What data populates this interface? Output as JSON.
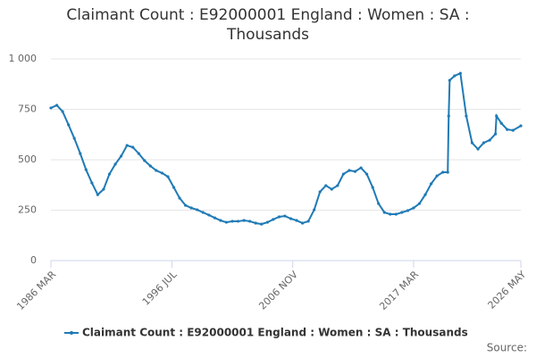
{
  "chart_data": {
    "type": "line",
    "title": "Claimant Count : E92000001 England : Women : SA : Thousands",
    "source": "Source:",
    "x": [
      "1986 MAR",
      "1986 SEP",
      "1987 MAR",
      "1987 SEP",
      "1988 MAR",
      "1988 SEP",
      "1989 MAR",
      "1989 SEP",
      "1990 MAR",
      "1990 SEP",
      "1991 MAR",
      "1991 SEP",
      "1992 MAR",
      "1992 SEP",
      "1993 MAR",
      "1993 SEP",
      "1994 MAR",
      "1994 SEP",
      "1995 MAR",
      "1995 SEP",
      "1996 MAR",
      "1996 SEP",
      "1997 MAR",
      "1997 SEP",
      "1998 MAR",
      "1998 SEP",
      "1999 MAR",
      "1999 SEP",
      "2000 MAR",
      "2000 SEP",
      "2001 MAR",
      "2001 SEP",
      "2002 MAR",
      "2002 SEP",
      "2003 MAR",
      "2003 SEP",
      "2004 MAR",
      "2004 SEP",
      "2005 MAR",
      "2005 SEP",
      "2006 MAR",
      "2006 SEP",
      "2007 MAR",
      "2007 SEP",
      "2008 MAR",
      "2008 SEP",
      "2009 MAR",
      "2009 SEP",
      "2010 MAR",
      "2010 SEP",
      "2011 MAR",
      "2011 SEP",
      "2012 MAR",
      "2012 SEP",
      "2013 MAR",
      "2013 SEP",
      "2014 MAR",
      "2014 SEP",
      "2015 MAR",
      "2015 SEP",
      "2016 MAR",
      "2016 SEP",
      "2017 MAR",
      "2017 SEP",
      "2018 MAR",
      "2018 SEP",
      "2019 MAR",
      "2019 SEP",
      "2020 FEB",
      "2020 MAR",
      "2020 APR",
      "2020 SEP",
      "2021 MAR",
      "2021 SEP",
      "2022 MAR",
      "2022 SEP",
      "2023 MAR",
      "2023 SEP",
      "2024 MAR",
      "2024 APR",
      "2024 SEP",
      "2025 MAR",
      "2025 SEP",
      "2026 MAY"
    ],
    "series": [
      {
        "name": "Claimant Count : E92000001 England : Women : SA : Thousands",
        "color": "#1f7ab5",
        "values": [
          757,
          770,
          739,
          673,
          606,
          531,
          451,
          385,
          327,
          354,
          429,
          478,
          518,
          571,
          562,
          531,
          496,
          469,
          447,
          434,
          416,
          363,
          310,
          274,
          261,
          252,
          239,
          226,
          212,
          199,
          190,
          195,
          195,
          199,
          195,
          186,
          181,
          190,
          204,
          217,
          221,
          208,
          199,
          186,
          195,
          252,
          341,
          372,
          354,
          372,
          429,
          447,
          442,
          460,
          429,
          363,
          283,
          239,
          230,
          230,
          239,
          248,
          261,
          283,
          327,
          381,
          420,
          438,
          438,
          717,
          894,
          916,
          929,
          717,
          584,
          553,
          584,
          597,
          628,
          717,
          681,
          650,
          646,
          668
        ]
      }
    ],
    "xticks": [
      "1986 MAR",
      "1996 JUL",
      "2006 NOV",
      "2017 MAR",
      "2026 MAY"
    ],
    "ylim": [
      0,
      1000
    ],
    "yticks": [
      0,
      250,
      500,
      750,
      {
        "value": 1000,
        "label": "1 000"
      }
    ],
    "grid": true
  }
}
